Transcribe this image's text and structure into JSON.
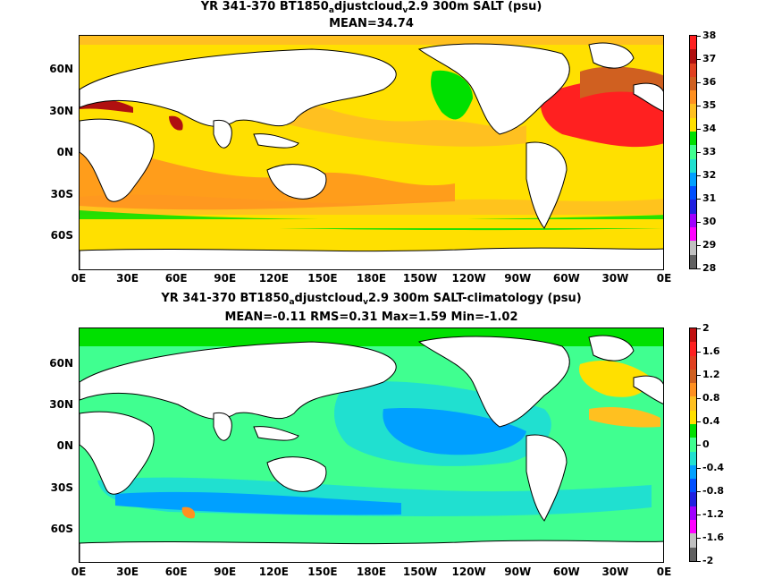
{
  "top": {
    "title_parts": [
      "YR 341-370 BT1850",
      "a",
      "djustcloud",
      "v",
      "2.9 300m SALT (psu)"
    ],
    "subtitle": "MEAN=34.74",
    "colorbar_labels": [
      "38",
      "37",
      "36",
      "35",
      "34",
      "33",
      "32",
      "31",
      "30",
      "29",
      "28"
    ],
    "colorbar_colors": [
      "#ff2020",
      "#b01010",
      "#e04020",
      "#d06020",
      "#ff9020",
      "#ffc020",
      "#ffe000",
      "#00e000",
      "#40ff90",
      "#20e0d0",
      "#00a0ff",
      "#0050ff",
      "#2020e0",
      "#a000ff",
      "#ff00ff",
      "#c0c0c0",
      "#606060"
    ]
  },
  "bottom": {
    "title_parts": [
      "YR 341-370 BT1850",
      "a",
      "djustcloud",
      "v",
      "2.9 300m SALT-climatology (psu)"
    ],
    "subtitle": "MEAN=-0.11   RMS=0.31   Max=1.59   Min=-1.02",
    "colorbar_labels": [
      "2",
      "1.6",
      "1.2",
      "0.8",
      "0.4",
      "0",
      "-0.4",
      "-0.8",
      "-1.2",
      "-1.6",
      "-2"
    ],
    "colorbar_colors": [
      "#c01010",
      "#ff2020",
      "#e04020",
      "#d06020",
      "#ff9020",
      "#ffc020",
      "#ffe000",
      "#00e000",
      "#40ff90",
      "#20e0d0",
      "#00a0ff",
      "#0050ff",
      "#2020e0",
      "#a000ff",
      "#ff00ff",
      "#c0c0c0",
      "#606060"
    ]
  },
  "lat_labels": [
    "60N",
    "30N",
    "0N",
    "30S",
    "60S"
  ],
  "lon_labels": [
    "0E",
    "30E",
    "60E",
    "90E",
    "120E",
    "150E",
    "180E",
    "150W",
    "120W",
    "90W",
    "60W",
    "30W",
    "0E"
  ]
}
